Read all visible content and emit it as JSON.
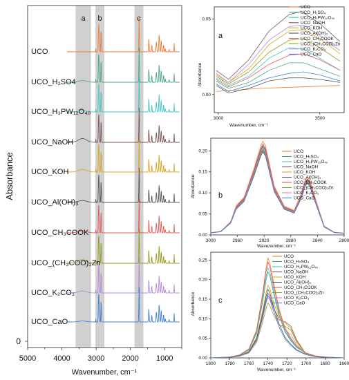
{
  "figure": {
    "main": {
      "type": "line",
      "xlabel": "Wavenumber, cm⁻¹",
      "ylabel": "Absorbance",
      "x_range": [
        5000,
        500
      ],
      "x_ticks": [
        "5000",
        "4000",
        "3000",
        "2000",
        "1000"
      ],
      "y_tick_label": "0",
      "bands": [
        {
          "label": "a",
          "x_range": [
            3600,
            3150
          ]
        },
        {
          "label": "b",
          "x_range": [
            3020,
            2760
          ]
        },
        {
          "label": "c",
          "x_range": [
            1880,
            1620
          ]
        }
      ]
    },
    "panels": {
      "a": {
        "label": "a",
        "xlabel": "Wavenumber, cm⁻¹",
        "ylabel": "Absorbance",
        "x_ticks": [
          "3000",
          "3500"
        ],
        "y_ticks": [
          "0.00",
          "0.05"
        ]
      },
      "b": {
        "label": "b",
        "xlabel": "Wavenumber, cm⁻¹",
        "ylabel": "Absorbance",
        "x_ticks": [
          "3000",
          "2960",
          "2920",
          "2880",
          "2840",
          "2800"
        ],
        "y_ticks": [
          "0.00",
          "0.05",
          "0.10",
          "0.15",
          "0.20"
        ]
      },
      "c": {
        "label": "c",
        "xlabel": "Wavenumber, cm⁻¹",
        "ylabel": "Absorbance",
        "x_ticks": [
          "1800",
          "1780",
          "1760",
          "1740",
          "1720",
          "1700",
          "1680",
          "1660"
        ],
        "y_ticks": [
          "0.00",
          "0.05",
          "0.10",
          "0.15",
          "0.20",
          "0.25"
        ]
      }
    }
  },
  "chart_data": [
    {
      "type": "line",
      "title": "",
      "xlabel": "Wavenumber, cm⁻¹",
      "ylabel": "Absorbance",
      "xlim": [
        5000,
        500
      ],
      "categories": [
        "UCO",
        "UCO_H2SO4",
        "UCO_H3PW12O40",
        "UCO_NaOH",
        "UCO_KOH",
        "UCO_Al(OH)3",
        "UCO_CH3COOK",
        "UCO_(CH3COO)2Zn",
        "UCO_K2CO3",
        "UCO_CaO"
      ],
      "display_labels": [
        "UCO",
        "UCO_H₂SO4",
        "UCO_H₃PW₁₂O₄₀",
        "UCO_NaOH",
        "UCO_KOH",
        "UCO_Al(OH)₃",
        "UCO_CH₃COOK",
        "UCO_(CH₃COO)₂Zn",
        "UCO_K₂CO₃",
        "UCO_CaO"
      ],
      "colors": [
        "#ee7d31",
        "#4aa58a",
        "#3cc9c2",
        "#7a5552",
        "#d8a520",
        "#555555",
        "#e85858",
        "#9a9a1a",
        "#b48ad8",
        "#3f7fd4"
      ],
      "oh_band_relative": [
        0.0,
        0.25,
        0.2,
        0.6,
        0.4,
        0.3,
        0.35,
        0.55,
        0.3,
        0.15
      ]
    },
    {
      "type": "line",
      "panel": "a",
      "xlabel": "Wavenumber, cm⁻¹",
      "ylabel": "Absorbance",
      "xlim": [
        2980,
        3620
      ],
      "ylim": [
        -0.012,
        0.058
      ],
      "series": [
        {
          "name": "UCO",
          "color": "#ee7d31",
          "x": [
            2990,
            3200,
            3400,
            3600
          ],
          "y": [
            0.002,
            0.004,
            0.005,
            0.006
          ]
        },
        {
          "name": "UCO_H2SO4",
          "color": "#4aa58a",
          "x": [
            2990,
            3050,
            3150,
            3250,
            3350,
            3420,
            3500,
            3600
          ],
          "y": [
            0.009,
            0.004,
            0.008,
            0.016,
            0.021,
            0.021,
            0.017,
            0.012
          ]
        },
        {
          "name": "UCO_H3PW12O40",
          "color": "#3cc9c2",
          "x": [
            2990,
            3050,
            3150,
            3250,
            3350,
            3420,
            3500,
            3600
          ],
          "y": [
            0.011,
            0.006,
            0.012,
            0.024,
            0.031,
            0.03,
            0.024,
            0.016
          ]
        },
        {
          "name": "UCO_NaOH",
          "color": "#7a5552",
          "x": [
            2990,
            3050,
            3150,
            3250,
            3350,
            3410,
            3500,
            3600
          ],
          "y": [
            0.016,
            0.01,
            0.023,
            0.042,
            0.053,
            0.055,
            0.047,
            0.035
          ]
        },
        {
          "name": "UCO_KOH",
          "color": "#d8a520",
          "x": [
            2990,
            3050,
            3150,
            3250,
            3350,
            3420,
            3500,
            3600
          ],
          "y": [
            0.013,
            0.008,
            0.017,
            0.033,
            0.042,
            0.043,
            0.037,
            0.027
          ]
        },
        {
          "name": "UCO_Al(OH)3",
          "color": "#555555",
          "x": [
            2990,
            3050,
            3150,
            3250,
            3350,
            3420,
            3500,
            3600
          ],
          "y": [
            0.006,
            0.001,
            0.004,
            0.009,
            0.011,
            0.011,
            0.01,
            0.008
          ]
        },
        {
          "name": "UCO_CH3COOK",
          "color": "#e85858",
          "x": [
            2990,
            3050,
            3150,
            3250,
            3350,
            3420,
            3500,
            3600
          ],
          "y": [
            0.01,
            0.005,
            0.011,
            0.02,
            0.026,
            0.027,
            0.023,
            0.016
          ]
        },
        {
          "name": "UCO_(CH3COO)2Zn",
          "color": "#9a9a1a",
          "x": [
            2990,
            3050,
            3150,
            3250,
            3350,
            3420,
            3500,
            3600
          ],
          "y": [
            0.012,
            0.007,
            0.015,
            0.028,
            0.036,
            0.037,
            0.031,
            0.022
          ]
        },
        {
          "name": "UCO_K2CO3",
          "color": "#b48ad8",
          "x": [
            2990,
            3050,
            3150,
            3250,
            3350,
            3420,
            3500,
            3600
          ],
          "y": [
            0.014,
            0.008,
            0.02,
            0.036,
            0.045,
            0.046,
            0.039,
            0.029
          ]
        },
        {
          "name": "UCO_CaO",
          "color": "#3f7fd4",
          "x": [
            2990,
            3050,
            3150,
            3250,
            3350,
            3420,
            3500,
            3600
          ],
          "y": [
            0.007,
            0.002,
            0.006,
            0.011,
            0.014,
            0.015,
            0.013,
            0.009
          ]
        }
      ]
    },
    {
      "type": "line",
      "panel": "b",
      "xlabel": "Wavenumber, cm⁻¹",
      "ylabel": "Absorbance",
      "xlim": [
        3000,
        2800
      ],
      "ylim": [
        0.0,
        0.23
      ],
      "x": [
        3000,
        2985,
        2970,
        2962,
        2950,
        2935,
        2925,
        2922,
        2918,
        2905,
        2890,
        2875,
        2865,
        2858,
        2855,
        2852,
        2845,
        2830,
        2815,
        2800
      ],
      "series": [
        {
          "name": "UCO",
          "color": "#ee7d31",
          "peak_scale": 1.06
        },
        {
          "name": "UCO_H2SO4",
          "color": "#4aa58a",
          "peak_scale": 0.97
        },
        {
          "name": "UCO_H3PW12O40",
          "color": "#3cc9c2",
          "peak_scale": 1.0
        },
        {
          "name": "UCO_NaOH",
          "color": "#7a5552",
          "peak_scale": 0.94
        },
        {
          "name": "UCO_KOH",
          "color": "#d8a520",
          "peak_scale": 0.98
        },
        {
          "name": "UCO_Al(OH)3",
          "color": "#555555",
          "peak_scale": 1.01
        },
        {
          "name": "UCO_CH3COOK",
          "color": "#e85858",
          "peak_scale": 1.03
        },
        {
          "name": "UCO_(CH3COO)2Zn",
          "color": "#9a9a1a",
          "peak_scale": 0.96
        },
        {
          "name": "UCO_K2CO3",
          "color": "#b48ad8",
          "peak_scale": 0.99
        },
        {
          "name": "UCO_CaO",
          "color": "#3f7fd4",
          "peak_scale": 0.95
        }
      ],
      "base_y": [
        0.005,
        0.008,
        0.03,
        0.065,
        0.085,
        0.15,
        0.2,
        0.21,
        0.2,
        0.11,
        0.065,
        0.055,
        0.09,
        0.125,
        0.13,
        0.125,
        0.09,
        0.02,
        0.006,
        0.004
      ]
    },
    {
      "type": "line",
      "panel": "c",
      "xlabel": "Wavenumber, cm⁻¹",
      "ylabel": "Absorbance",
      "xlim": [
        1800,
        1660
      ],
      "ylim": [
        0.0,
        0.27
      ],
      "x": [
        1800,
        1780,
        1770,
        1760,
        1752,
        1746,
        1742,
        1740,
        1738,
        1734,
        1728,
        1722,
        1716,
        1710,
        1700,
        1690,
        1680,
        1660
      ],
      "series": [
        {
          "name": "UCO",
          "color": "#ee7d31",
          "peak": 0.255,
          "shoulder": 0.0
        },
        {
          "name": "UCO_H2SO4",
          "color": "#4aa58a",
          "peak": 0.22,
          "shoulder": 0.0
        },
        {
          "name": "UCO_H3PW12O40",
          "color": "#3cc9c2",
          "peak": 0.23,
          "shoulder": 0.0
        },
        {
          "name": "UCO_NaOH",
          "color": "#7a5552",
          "peak": 0.165,
          "shoulder": 0.05
        },
        {
          "name": "UCO_KOH",
          "color": "#d8a520",
          "peak": 0.185,
          "shoulder": 0.04
        },
        {
          "name": "UCO_Al(OH)3",
          "color": "#555555",
          "peak": 0.175,
          "shoulder": 0.0
        },
        {
          "name": "UCO_CH3COOK",
          "color": "#e85858",
          "peak": 0.245,
          "shoulder": 0.0
        },
        {
          "name": "UCO_(CH3COO)2Zn",
          "color": "#9a9a1a",
          "peak": 0.14,
          "shoulder": 0.045
        },
        {
          "name": "UCO_K2CO3",
          "color": "#b48ad8",
          "peak": 0.155,
          "shoulder": 0.03
        },
        {
          "name": "UCO_CaO",
          "color": "#3f7fd4",
          "peak": 0.16,
          "shoulder": 0.0
        }
      ],
      "shape": [
        0.0,
        0.01,
        0.03,
        0.09,
        0.28,
        0.62,
        0.9,
        1.0,
        0.95,
        0.75,
        0.48,
        0.3,
        0.2,
        0.12,
        0.05,
        0.02,
        0.01,
        0.0
      ]
    }
  ],
  "legend": {
    "a": [
      "UCO",
      "UCO_H₂SO₄",
      "UCO_H₃PW₁₂O₄₀",
      "UCO_NaOH",
      "UCO_KOH",
      "UCO_Al(OH)₃",
      "UCO_CH₃COOK",
      "UCO_(CH₃COO)₂Zn",
      "UCO_K₂CO₃",
      "UCO_CaO"
    ],
    "b": [
      "UCO",
      "UCO_H₂SO₄",
      "UCO_H₃PW₁₂O₄₀",
      "UCO_NaOH",
      "UCO_KOH",
      "UCO_Al(OH)₃",
      "UCO_CH₃COOK",
      "UCO_(CH₃COO)₂Zn",
      "UCO_K₂CO₃",
      "UCO_CaO"
    ],
    "c": [
      "UCO",
      "UCO_H₂SO₄",
      "UCO_H₃PW₁₂O₄₀",
      "UCO_NaOH",
      "UCO_KOH",
      "UCO_Al(OH)₃",
      "UCO_CH₃COOK",
      "UCO_(CH₃COO)₂Zn",
      "UCO_K₂CO₃",
      "UCO_CaO"
    ]
  }
}
